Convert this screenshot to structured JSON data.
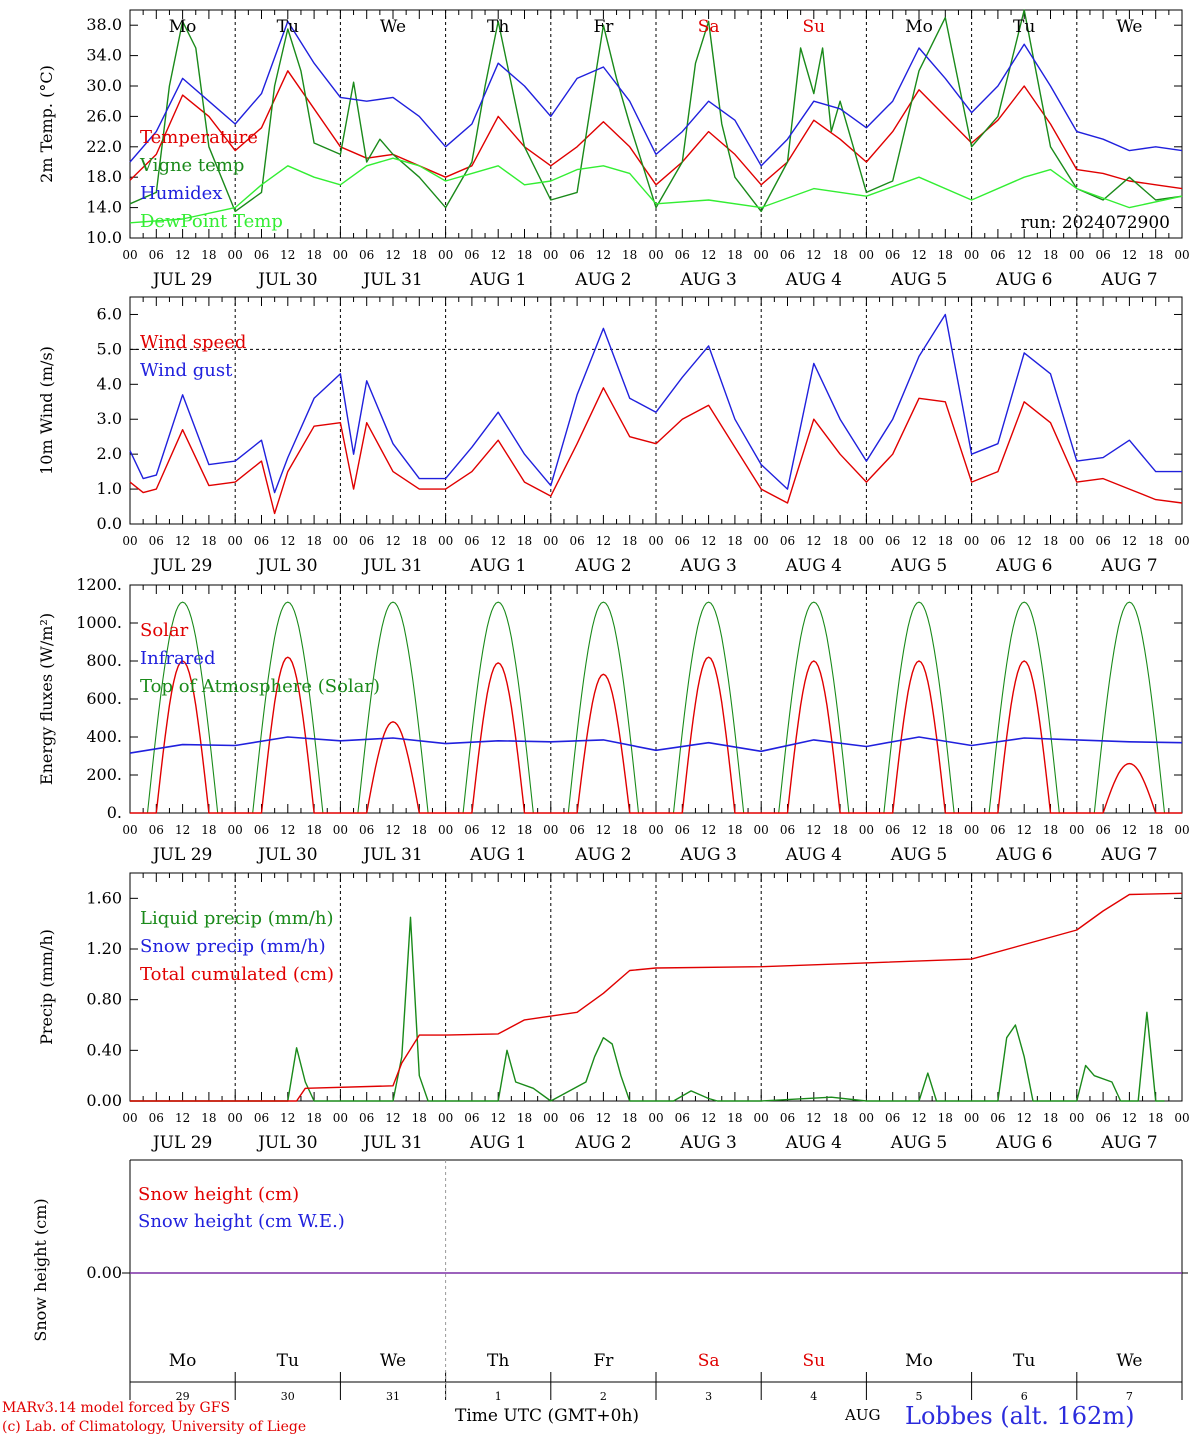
{
  "credits": {
    "line1": "MARv3.14 model forced by GFS",
    "line2": "(c) Lab. of Climatology, University of Liege"
  },
  "footer": {
    "xaxis_title": "Time UTC (GMT+0h)",
    "month": "AUG",
    "station": "Lobbes (alt. 162m)"
  },
  "colors": {
    "red": "#e00000",
    "dark_green": "#1a8a1a",
    "light_green": "#33ee33",
    "blue": "#2020dd",
    "weekend": "#e00000",
    "snow_line": "#7b2fa6"
  },
  "axis": {
    "hour_ticks": [
      "00",
      "06",
      "12",
      "18"
    ],
    "date_labels": [
      "JUL 29",
      "JUL 30",
      "JUL 31",
      "AUG  1",
      "AUG  2",
      "AUG  3",
      "AUG  4",
      "AUG  5",
      "AUG  6",
      "AUG  7"
    ],
    "end_tick": "00",
    "weekdays": [
      {
        "label": "Mo",
        "weekend": false
      },
      {
        "label": "Tu",
        "weekend": false
      },
      {
        "label": "We",
        "weekend": false
      },
      {
        "label": "Th",
        "weekend": false
      },
      {
        "label": "Fr",
        "weekend": false
      },
      {
        "label": "Sa",
        "weekend": true
      },
      {
        "label": "Su",
        "weekend": true
      },
      {
        "label": "Mo",
        "weekend": false
      },
      {
        "label": "Tu",
        "weekend": false
      },
      {
        "label": "We",
        "weekend": false
      }
    ],
    "day_numbers": [
      "29",
      "30",
      "31",
      "1",
      "2",
      "3",
      "4",
      "5",
      "6",
      "7"
    ]
  },
  "chart_data": [
    {
      "type": "line",
      "id": "temp",
      "ylabel": "2m Temp. (°C)",
      "ylim": [
        10,
        40
      ],
      "yticks": [
        "10.0",
        "14.0",
        "18.0",
        "22.0",
        "26.0",
        "30.0",
        "34.0",
        "38.0"
      ],
      "annotation": "run: 2024072900",
      "x_unit": "hours since JUL 29 00 UTC",
      "series": [
        {
          "name": "Temperature",
          "color": "red",
          "x": [
            0,
            6,
            12,
            18,
            24,
            30,
            36,
            42,
            48,
            54,
            60,
            66,
            72,
            78,
            84,
            90,
            96,
            102,
            108,
            114,
            120,
            126,
            132,
            138,
            144,
            150,
            156,
            162,
            168,
            174,
            180,
            186,
            192,
            198,
            204,
            210,
            216,
            222,
            228,
            234,
            240
          ],
          "values": [
            17.6,
            21.0,
            28.8,
            26.0,
            21.5,
            24.5,
            32.0,
            27.0,
            22.0,
            20.5,
            21.0,
            19.5,
            18.0,
            19.5,
            26.0,
            22.0,
            19.5,
            22.0,
            25.3,
            22.0,
            17.0,
            20.0,
            24.0,
            21.0,
            17.0,
            20.0,
            25.5,
            23.0,
            20.0,
            24.0,
            29.5,
            26.0,
            22.5,
            25.5,
            30.0,
            25.0,
            19.0,
            18.5,
            17.5,
            17.0,
            16.5
          ]
        },
        {
          "name": "Vigne temp",
          "color": "dark_green",
          "x": [
            0,
            6,
            9,
            12,
            15,
            18,
            24,
            30,
            33,
            36,
            39,
            42,
            48,
            51,
            54,
            57,
            60,
            66,
            72,
            78,
            81,
            84,
            90,
            96,
            102,
            108,
            111,
            114,
            120,
            126,
            129,
            132,
            135,
            138,
            144,
            150,
            153,
            156,
            158,
            160,
            162,
            165,
            168,
            174,
            180,
            186,
            192,
            198,
            204,
            210,
            216,
            222,
            228,
            234,
            240
          ],
          "values": [
            14.5,
            16.0,
            30.0,
            38.5,
            35.0,
            22.0,
            13.5,
            16.0,
            30.0,
            37.5,
            32.0,
            22.5,
            21.0,
            30.5,
            20.0,
            23.0,
            21.0,
            18.0,
            14.0,
            20.0,
            30.0,
            38.5,
            22.0,
            15.0,
            16.0,
            38.0,
            31.0,
            25.0,
            14.0,
            20.0,
            33.0,
            38.5,
            25.0,
            18.0,
            13.5,
            20.0,
            35.0,
            29.0,
            35.0,
            24.0,
            28.0,
            22.0,
            16.0,
            17.5,
            32.0,
            39.0,
            22.0,
            26.0,
            40.0,
            22.0,
            16.5,
            15.0,
            18.0,
            15.0,
            15.5
          ]
        },
        {
          "name": "Humidex",
          "color": "blue",
          "x": [
            0,
            6,
            12,
            18,
            24,
            30,
            36,
            42,
            48,
            54,
            60,
            66,
            72,
            78,
            84,
            90,
            96,
            102,
            108,
            114,
            120,
            126,
            132,
            138,
            144,
            150,
            156,
            162,
            168,
            174,
            180,
            186,
            192,
            198,
            204,
            210,
            216,
            222,
            228,
            234,
            240
          ],
          "values": [
            20.0,
            24.0,
            31.0,
            28.0,
            25.0,
            29.0,
            38.5,
            33.0,
            28.5,
            28.0,
            28.5,
            26.0,
            22.0,
            25.0,
            33.0,
            30.0,
            26.0,
            31.0,
            32.5,
            28.0,
            21.0,
            24.0,
            28.0,
            25.5,
            19.5,
            23.0,
            28.0,
            27.0,
            24.5,
            28.0,
            35.0,
            31.0,
            26.5,
            30.0,
            35.5,
            30.0,
            24.0,
            23.0,
            21.5,
            22.0,
            21.5
          ]
        },
        {
          "name": "DewPoint Temp",
          "color": "light_green",
          "x": [
            0,
            12,
            24,
            30,
            36,
            42,
            48,
            54,
            60,
            66,
            72,
            78,
            84,
            90,
            96,
            102,
            108,
            114,
            120,
            132,
            144,
            156,
            168,
            180,
            192,
            204,
            210,
            216,
            228,
            240
          ],
          "values": [
            12.0,
            12.5,
            14.0,
            17.0,
            19.5,
            18.0,
            17.0,
            19.5,
            20.5,
            19.5,
            17.5,
            18.5,
            19.5,
            17.0,
            17.5,
            19.0,
            19.5,
            18.5,
            14.5,
            15.0,
            14.0,
            16.5,
            15.5,
            18.0,
            15.0,
            18.0,
            19.0,
            16.5,
            14.0,
            15.5
          ]
        }
      ]
    },
    {
      "type": "line",
      "id": "wind",
      "ylabel": "10m Wind (m/s)",
      "ylim": [
        0,
        6.5
      ],
      "yticks": [
        "0.0",
        "1.0",
        "2.0",
        "3.0",
        "4.0",
        "5.0",
        "6.0"
      ],
      "reference_line": 5.0,
      "x_unit": "hours since JUL 29 00 UTC",
      "series": [
        {
          "name": "Wind speed",
          "color": "red",
          "x": [
            0,
            3,
            6,
            12,
            18,
            24,
            30,
            33,
            36,
            42,
            48,
            51,
            54,
            60,
            66,
            72,
            78,
            84,
            90,
            96,
            102,
            108,
            114,
            120,
            126,
            132,
            138,
            144,
            150,
            156,
            162,
            168,
            174,
            180,
            186,
            192,
            198,
            204,
            210,
            216,
            222,
            228,
            234,
            240
          ],
          "values": [
            1.2,
            0.9,
            1.0,
            2.7,
            1.1,
            1.2,
            1.8,
            0.3,
            1.5,
            2.8,
            2.9,
            1.0,
            2.9,
            1.5,
            1.0,
            1.0,
            1.5,
            2.4,
            1.2,
            0.8,
            2.3,
            3.9,
            2.5,
            2.3,
            3.0,
            3.4,
            2.2,
            1.0,
            0.6,
            3.0,
            2.0,
            1.2,
            2.0,
            3.6,
            3.5,
            1.2,
            1.5,
            3.5,
            2.9,
            1.2,
            1.3,
            1.0,
            0.7,
            0.6
          ]
        },
        {
          "name": "Wind gust",
          "color": "blue",
          "x": [
            0,
            3,
            6,
            12,
            18,
            24,
            30,
            33,
            36,
            42,
            48,
            51,
            54,
            60,
            66,
            72,
            78,
            84,
            90,
            96,
            102,
            108,
            114,
            120,
            126,
            132,
            138,
            144,
            150,
            156,
            162,
            168,
            174,
            180,
            186,
            192,
            198,
            204,
            210,
            216,
            222,
            228,
            234,
            240
          ],
          "values": [
            2.1,
            1.3,
            1.4,
            3.7,
            1.7,
            1.8,
            2.4,
            0.9,
            1.9,
            3.6,
            4.3,
            2.0,
            4.1,
            2.3,
            1.3,
            1.3,
            2.2,
            3.2,
            2.0,
            1.1,
            3.7,
            5.6,
            3.6,
            3.2,
            4.2,
            5.1,
            3.0,
            1.7,
            1.0,
            4.6,
            3.0,
            1.8,
            3.0,
            4.8,
            6.0,
            2.0,
            2.3,
            4.9,
            4.3,
            1.8,
            1.9,
            2.4,
            1.5,
            1.5
          ]
        }
      ]
    },
    {
      "type": "line",
      "id": "energy",
      "ylabel": "Energy fluxes (W/m²)",
      "ylim": [
        0,
        1200
      ],
      "yticks": [
        "0.",
        "200.",
        "400.",
        "600.",
        "800.",
        "1000.",
        "1200."
      ],
      "x_unit": "hours since JUL 29 00 UTC",
      "solar_daily_peaks": [
        800,
        820,
        480,
        790,
        730,
        820,
        800,
        800,
        800,
        260
      ],
      "toa_peak": 1110,
      "daylight_hours_utc": [
        4,
        20
      ],
      "series": [
        {
          "name": "Solar",
          "color": "red"
        },
        {
          "name": "Infrared",
          "color": "blue",
          "x": [
            0,
            12,
            24,
            36,
            48,
            60,
            72,
            84,
            96,
            108,
            120,
            132,
            144,
            156,
            168,
            180,
            192,
            204,
            216,
            228,
            240
          ],
          "values": [
            315,
            360,
            355,
            400,
            380,
            395,
            365,
            380,
            375,
            385,
            330,
            370,
            325,
            385,
            350,
            400,
            355,
            395,
            385,
            375,
            370
          ]
        },
        {
          "name": "Top of Atmosphere (Solar)",
          "color": "dark_green"
        }
      ]
    },
    {
      "type": "line",
      "id": "precip",
      "ylabel": "Precip (mm/h)",
      "ylim": [
        0,
        1.8
      ],
      "yticks": [
        "0.00",
        "0.40",
        "0.80",
        "1.20",
        "1.60"
      ],
      "x_unit": "hours since JUL 29 00 UTC",
      "series": [
        {
          "name": "Liquid precip (mm/h)",
          "color": "dark_green",
          "x": [
            0,
            36,
            38,
            40,
            42,
            60,
            62,
            64,
            66,
            68,
            70,
            72,
            84,
            86,
            88,
            92,
            96,
            104,
            106,
            108,
            110,
            112,
            114,
            124,
            128,
            132,
            134,
            144,
            160,
            168,
            180,
            182,
            184,
            198,
            200,
            202,
            204,
            206,
            208,
            216,
            218,
            220,
            224,
            226,
            230,
            232,
            234,
            236
          ],
          "values": [
            0,
            0,
            0.42,
            0.15,
            0,
            0,
            0.35,
            1.45,
            0.2,
            0,
            0,
            0,
            0,
            0.4,
            0.15,
            0.1,
            0,
            0.15,
            0.35,
            0.5,
            0.45,
            0.2,
            0,
            0,
            0.08,
            0.02,
            0,
            0,
            0.03,
            0,
            0,
            0.22,
            0,
            0,
            0.5,
            0.6,
            0.35,
            0,
            0,
            0,
            0.28,
            0.2,
            0.15,
            0,
            0,
            0.7,
            0,
            0
          ]
        },
        {
          "name": "Snow precip (mm/h)",
          "color": "blue"
        },
        {
          "name": "Total cumulated (cm)",
          "color": "red",
          "x": [
            0,
            38,
            40,
            60,
            62,
            66,
            72,
            84,
            90,
            102,
            108,
            114,
            120,
            144,
            192,
            216,
            222,
            228,
            240
          ],
          "values": [
            0,
            0,
            0.1,
            0.12,
            0.3,
            0.52,
            0.52,
            0.53,
            0.64,
            0.7,
            0.85,
            1.03,
            1.05,
            1.06,
            1.12,
            1.35,
            1.5,
            1.63,
            1.64
          ]
        }
      ]
    },
    {
      "type": "line",
      "id": "snow",
      "ylabel": "Snow height (cm)",
      "yticks": [
        "0.00"
      ],
      "x_unit": "hours since JUL 29 00 UTC",
      "series": [
        {
          "name": "Snow height (cm)",
          "color": "red",
          "x": [
            0,
            240
          ],
          "values": [
            0,
            0
          ]
        },
        {
          "name": "Snow height (cm W.E.)",
          "color": "blue",
          "x": [
            0,
            240
          ],
          "values": [
            0,
            0
          ]
        }
      ]
    }
  ]
}
